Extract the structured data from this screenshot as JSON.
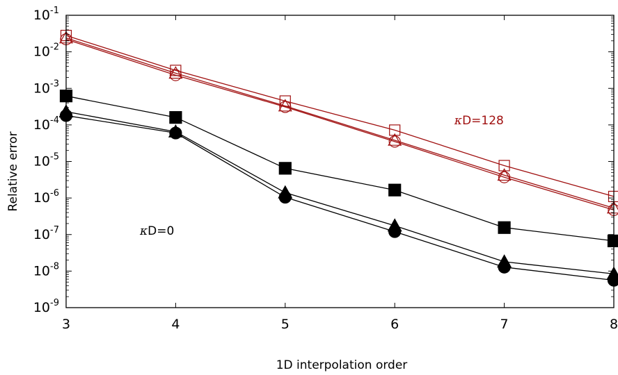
{
  "chart_data": {
    "type": "line",
    "xlabel": "1D interpolation order",
    "ylabel": "Relative error",
    "x": [
      3,
      4,
      5,
      6,
      7,
      8
    ],
    "xlim": [
      3,
      8
    ],
    "ylim": [
      1e-09,
      0.1
    ],
    "yscale": "log",
    "x_ticks": [
      "3",
      "4",
      "5",
      "6",
      "7",
      "8"
    ],
    "y_ticks": [
      {
        "base": "10",
        "exp": "-9"
      },
      {
        "base": "10",
        "exp": "-8"
      },
      {
        "base": "10",
        "exp": "-7"
      },
      {
        "base": "10",
        "exp": "-6"
      },
      {
        "base": "10",
        "exp": "-5"
      },
      {
        "base": "10",
        "exp": "-4"
      },
      {
        "base": "10",
        "exp": "-3"
      },
      {
        "base": "10",
        "exp": "-2"
      },
      {
        "base": "10",
        "exp": "-1"
      }
    ],
    "grid": false,
    "series": [
      {
        "marker": "square-open",
        "color": "#a01010",
        "values": [
          0.028,
          0.0031,
          0.00045,
          7.2e-05,
          7.7e-06,
          1.1e-06
        ]
      },
      {
        "marker": "triangle-open",
        "color": "#a01010",
        "values": [
          0.024,
          0.0026,
          0.00033,
          3.8e-05,
          4.2e-06,
          5.3e-07
        ]
      },
      {
        "marker": "circle-open",
        "color": "#a01010",
        "values": [
          0.022,
          0.0023,
          0.00031,
          3.5e-05,
          3.7e-06,
          4.7e-07
        ]
      },
      {
        "marker": "square-filled",
        "color": "#000000",
        "values": [
          0.00062,
          0.00016,
          6.5e-06,
          1.65e-06,
          1.55e-07,
          6.7e-08
        ]
      },
      {
        "marker": "triangle-filled",
        "color": "#000000",
        "values": [
          0.00023,
          6.5e-05,
          1.4e-06,
          1.75e-07,
          1.8e-08,
          8.4e-09
        ]
      },
      {
        "marker": "circle-filled",
        "color": "#000000",
        "values": [
          0.00018,
          6e-05,
          1.05e-06,
          1.2e-07,
          1.28e-08,
          5.6e-09
        ]
      }
    ],
    "annotations": [
      {
        "prefix": "κ",
        "text": "D=128",
        "color": "#a01010",
        "x": 6.77,
        "y": 0.000105
      },
      {
        "prefix": "κ",
        "text": "D=0",
        "color": "#000000",
        "x": 3.83,
        "y": 1e-07
      }
    ]
  }
}
